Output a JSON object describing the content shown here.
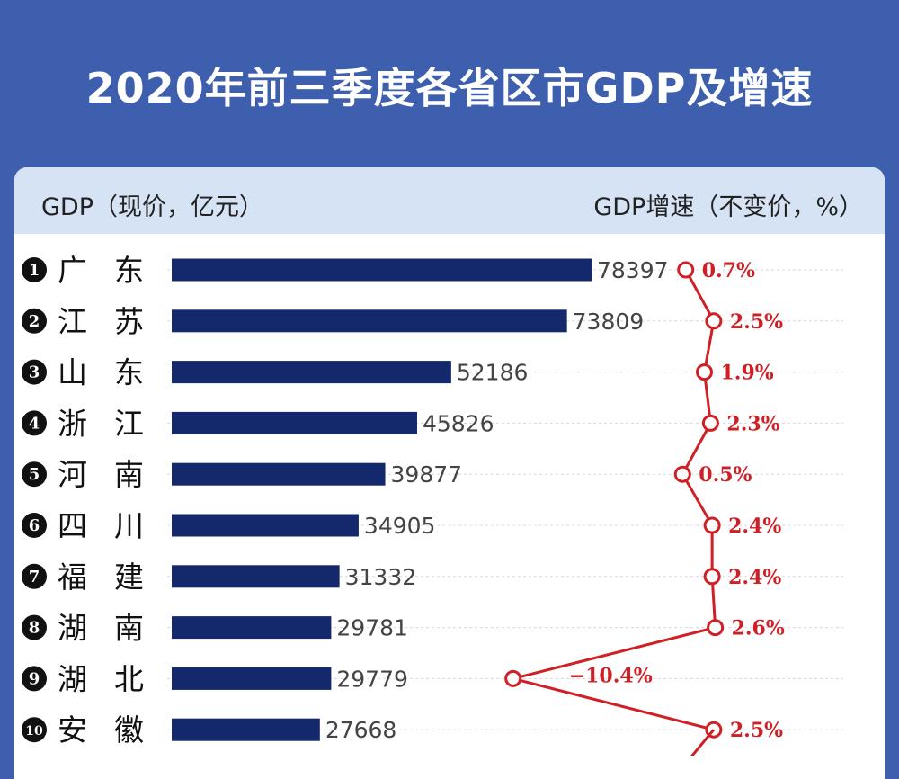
{
  "title": "2020年前三季度各省区市GDP及增速",
  "header": {
    "left_label": "GDP（现价，亿元）",
    "right_label": "GDP增速（不变价，%）"
  },
  "colors": {
    "background": "#3d5fad",
    "bar": "#13296b",
    "line": "#cf2026",
    "header_band": "#d6e3f5"
  },
  "chart_data": {
    "type": "bar",
    "title": "2020年前三季度各省区市GDP及增速",
    "xlabel": "GDP（现价，亿元）",
    "ylabel": "",
    "xlim": [
      0,
      78397
    ],
    "categories": [
      "广东",
      "江苏",
      "山东",
      "浙江",
      "河南",
      "四川",
      "福建",
      "湖南",
      "湖北",
      "安徽"
    ],
    "ranks": [
      "1",
      "2",
      "3",
      "4",
      "5",
      "6",
      "7",
      "8",
      "9",
      "10"
    ],
    "category_labels": [
      [
        "广",
        "东"
      ],
      [
        "江",
        "苏"
      ],
      [
        "山",
        "东"
      ],
      [
        "浙",
        "江"
      ],
      [
        "河",
        "南"
      ],
      [
        "四",
        "川"
      ],
      [
        "福",
        "建"
      ],
      [
        "湖",
        "南"
      ],
      [
        "湖",
        "北"
      ],
      [
        "安",
        "徽"
      ]
    ],
    "series": [
      {
        "name": "GDP（现价，亿元）",
        "type": "bar",
        "values": [
          78397,
          73809,
          52186,
          45826,
          39877,
          34905,
          31332,
          29781,
          29779,
          27668
        ],
        "labels": [
          "78397",
          "73809",
          "52186",
          "45826",
          "39877",
          "34905",
          "31332",
          "29781",
          "29779",
          "27668"
        ]
      },
      {
        "name": "GDP增速（不变价，%）",
        "type": "line",
        "values": [
          0.7,
          2.5,
          1.9,
          2.3,
          0.5,
          2.4,
          2.4,
          2.6,
          -10.4,
          2.5
        ],
        "labels": [
          "0.7%",
          "2.5%",
          "1.9%",
          "2.3%",
          "0.5%",
          "2.4%",
          "2.4%",
          "2.6%",
          "−10.4%",
          "2.5%"
        ]
      }
    ]
  }
}
